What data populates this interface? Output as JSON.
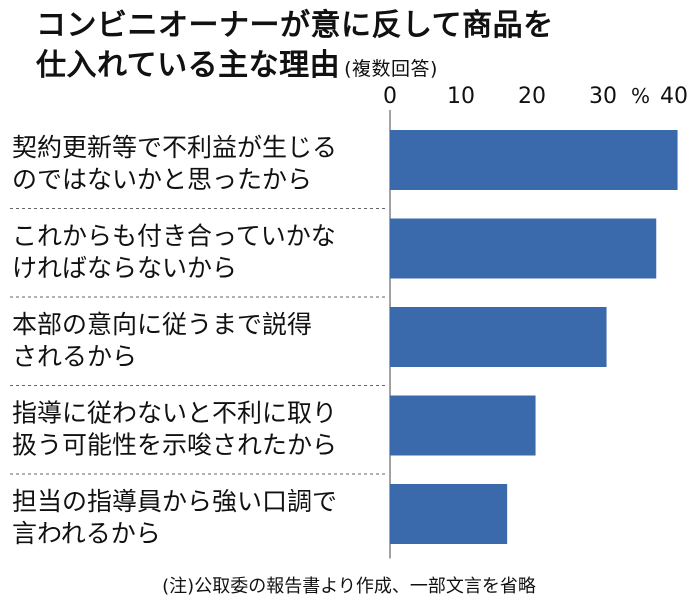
{
  "title_line1": "コンビニオーナーが意に反して商品を",
  "title_line2": "仕入れている主な理由",
  "title_sub": "(複数回答)",
  "note": "(注)公取委の報告書より作成、一部文言を省略",
  "colors": {
    "bar": "#3a6aab",
    "text": "#111111",
    "separator": "#666666"
  },
  "chart_data": {
    "type": "bar",
    "orientation": "horizontal",
    "unit": "%",
    "xlim": [
      0,
      40
    ],
    "ticks": [
      "0",
      "10",
      "20",
      "30",
      "40"
    ],
    "grid": false,
    "categories": [
      [
        "契約更新等で不利益が生じる",
        "のではないかと思ったから"
      ],
      [
        "これからも付き合っていかな",
        "ければならないから"
      ],
      [
        "本部の意向に従うまで説得",
        "されるから"
      ],
      [
        "指導に従わないと不利に取り",
        "扱う可能性を示唆されたから"
      ],
      [
        "担当の指導員から強い口調で",
        "言われるから"
      ]
    ],
    "values": [
      40.5,
      37.5,
      30.5,
      20.5,
      16.5
    ]
  }
}
